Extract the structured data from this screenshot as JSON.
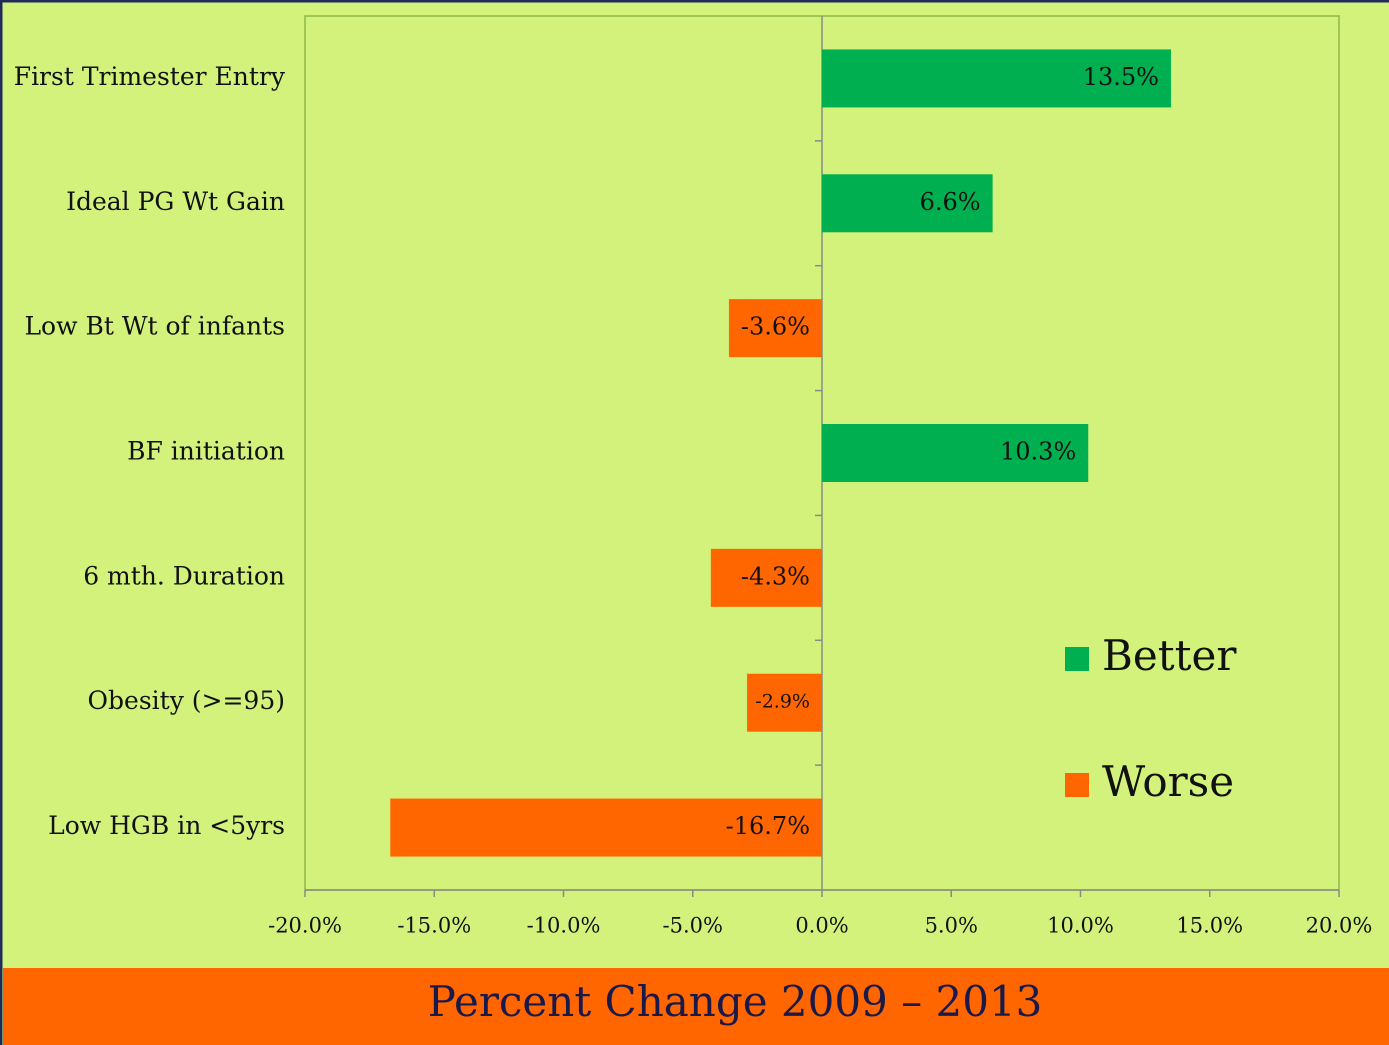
{
  "chart_data": {
    "type": "bar",
    "orientation": "horizontal",
    "title": "Percent Change 2009 – 2013",
    "categories": [
      "First Trimester Entry",
      "Ideal PG Wt Gain",
      "Low Bt Wt of infants",
      "BF initiation",
      "6 mth. Duration",
      "Obesity (>=95)",
      "Low HGB in <5yrs"
    ],
    "series": [
      {
        "name": "Better",
        "color": "#00b050",
        "values": [
          13.5,
          6.6,
          null,
          10.3,
          null,
          null,
          null
        ],
        "value_labels": [
          "13.5%",
          "6.6%",
          null,
          "10.3%",
          null,
          null,
          null
        ]
      },
      {
        "name": "Worse",
        "color": "#ff6600",
        "values": [
          null,
          null,
          -3.6,
          null,
          -4.3,
          -2.9,
          -16.7
        ],
        "value_labels": [
          null,
          null,
          "-3.6%",
          null,
          "-4.3%",
          "-2.9%",
          "-16.7%"
        ]
      }
    ],
    "xlim": [
      -20,
      20
    ],
    "xticks": [
      {
        "value": -20,
        "label": "-20.0%"
      },
      {
        "value": -15,
        "label": "-15.0%"
      },
      {
        "value": -10,
        "label": "-10.0%"
      },
      {
        "value": -5,
        "label": "-5.0%"
      },
      {
        "value": 0,
        "label": "0.0%"
      },
      {
        "value": 5,
        "label": "5.0%"
      },
      {
        "value": 10,
        "label": "10.0%"
      },
      {
        "value": 15,
        "label": "15.0%"
      },
      {
        "value": 20,
        "label": "20.0%"
      }
    ],
    "legend": "right"
  }
}
